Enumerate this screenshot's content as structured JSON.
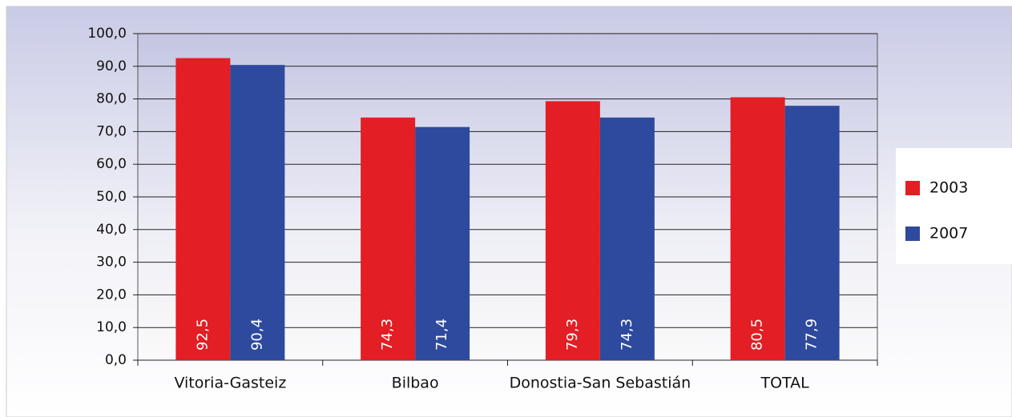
{
  "chart_data": {
    "type": "bar",
    "categories": [
      "Vitoria-Gasteiz",
      "Bilbao",
      "Donostia-San Sebastián",
      "TOTAL"
    ],
    "series": [
      {
        "name": "2003",
        "color": "#e31e24",
        "values": [
          92.5,
          74.3,
          79.3,
          80.5
        ],
        "value_labels": [
          "92,5",
          "74,3",
          "79,3",
          "80,5"
        ]
      },
      {
        "name": "2007",
        "color": "#2e4a9e",
        "values": [
          90.4,
          71.4,
          74.3,
          77.9
        ],
        "value_labels": [
          "90,4",
          "71,4",
          "74,3",
          "77,9"
        ]
      }
    ],
    "ylim": [
      0,
      100
    ],
    "yticks": [
      {
        "value": 0,
        "label": "0,0"
      },
      {
        "value": 10,
        "label": "10,0"
      },
      {
        "value": 20,
        "label": "20,0"
      },
      {
        "value": 30,
        "label": "30,0"
      },
      {
        "value": 40,
        "label": "40,0"
      },
      {
        "value": 50,
        "label": "50,0"
      },
      {
        "value": 60,
        "label": "60,0"
      },
      {
        "value": 70,
        "label": "70,0"
      },
      {
        "value": 80,
        "label": "80,0"
      },
      {
        "value": 90,
        "label": "90,0"
      },
      {
        "value": 100,
        "label": "100,0"
      }
    ],
    "grid": true,
    "legend": "right"
  }
}
